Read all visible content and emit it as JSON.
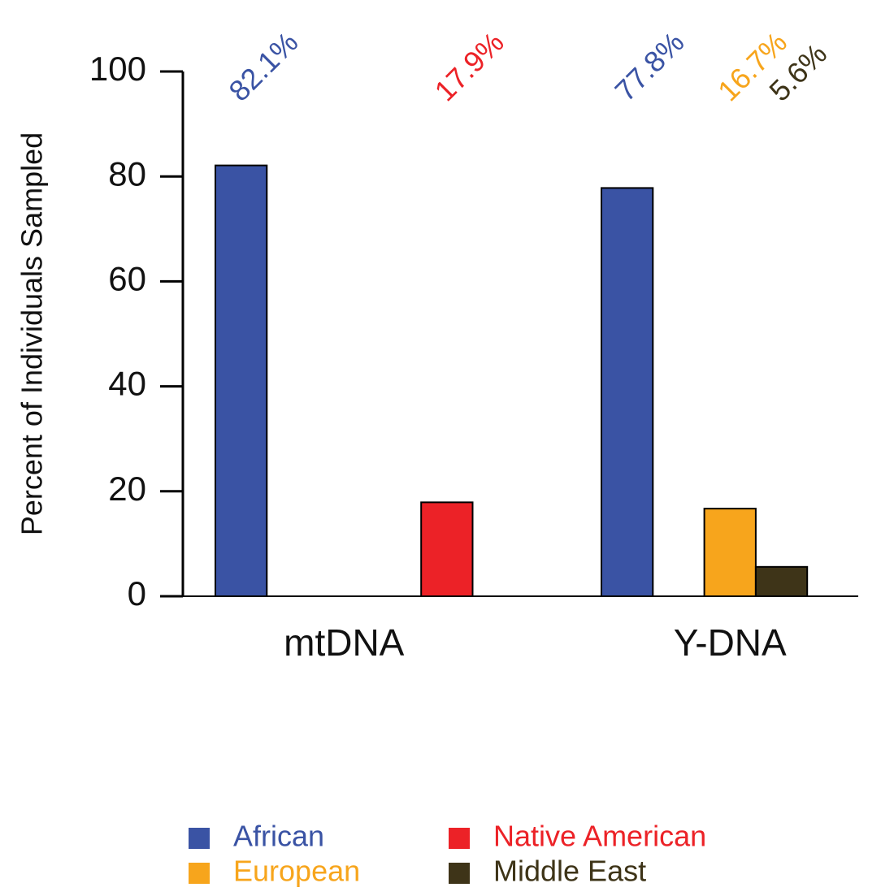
{
  "chart_data": {
    "type": "bar",
    "y_label": "Percent of Individuals Sampled",
    "categories": [
      "mtDNA",
      "Y-DNA"
    ],
    "series": [
      {
        "name": "African",
        "color": "#3a53a4",
        "values": [
          82.1,
          77.8
        ],
        "value_labels": [
          "82.1%",
          "77.8%"
        ]
      },
      {
        "name": "Native American",
        "color": "#ec2227",
        "values": [
          17.9,
          null
        ],
        "value_labels": [
          "17.9%",
          null
        ]
      },
      {
        "name": "European",
        "color": "#f7a51c",
        "values": [
          null,
          16.7
        ],
        "value_labels": [
          null,
          "16.7%"
        ]
      },
      {
        "name": "Middle East",
        "color": "#3e3418",
        "values": [
          null,
          5.6
        ],
        "value_labels": [
          null,
          "5.6%"
        ]
      }
    ],
    "ylim": [
      0,
      100
    ],
    "yticks": [
      0,
      20,
      40,
      60,
      80,
      100
    ]
  }
}
